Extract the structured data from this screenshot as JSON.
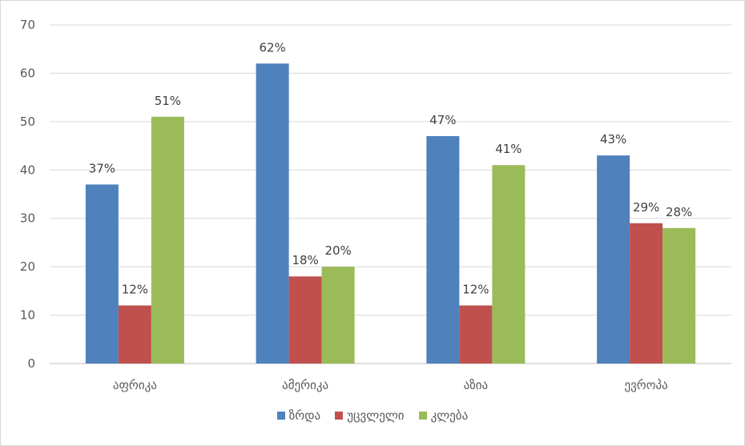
{
  "chart_data": {
    "type": "bar",
    "categories": [
      "აფრიკა",
      "ამერიკა",
      "აზია",
      "ევროპა"
    ],
    "series": [
      {
        "name": "ზრდა",
        "values": [
          37,
          62,
          47,
          43
        ],
        "labels": [
          "37%",
          "62%",
          "47%",
          "43%"
        ],
        "color": "#4f81bd"
      },
      {
        "name": "უცვლელი",
        "values": [
          12,
          18,
          12,
          29
        ],
        "labels": [
          "12%",
          "18%",
          "12%",
          "29%"
        ],
        "color": "#c0504d"
      },
      {
        "name": "კლება",
        "values": [
          51,
          20,
          41,
          28
        ],
        "labels": [
          "51%",
          "20%",
          "41%",
          "28%"
        ],
        "color": "#9bbb59"
      }
    ],
    "ylim": [
      0,
      70
    ],
    "yticks": [
      0,
      10,
      20,
      30,
      40,
      50,
      60,
      70
    ],
    "grid": true,
    "legend_position": "bottom"
  }
}
